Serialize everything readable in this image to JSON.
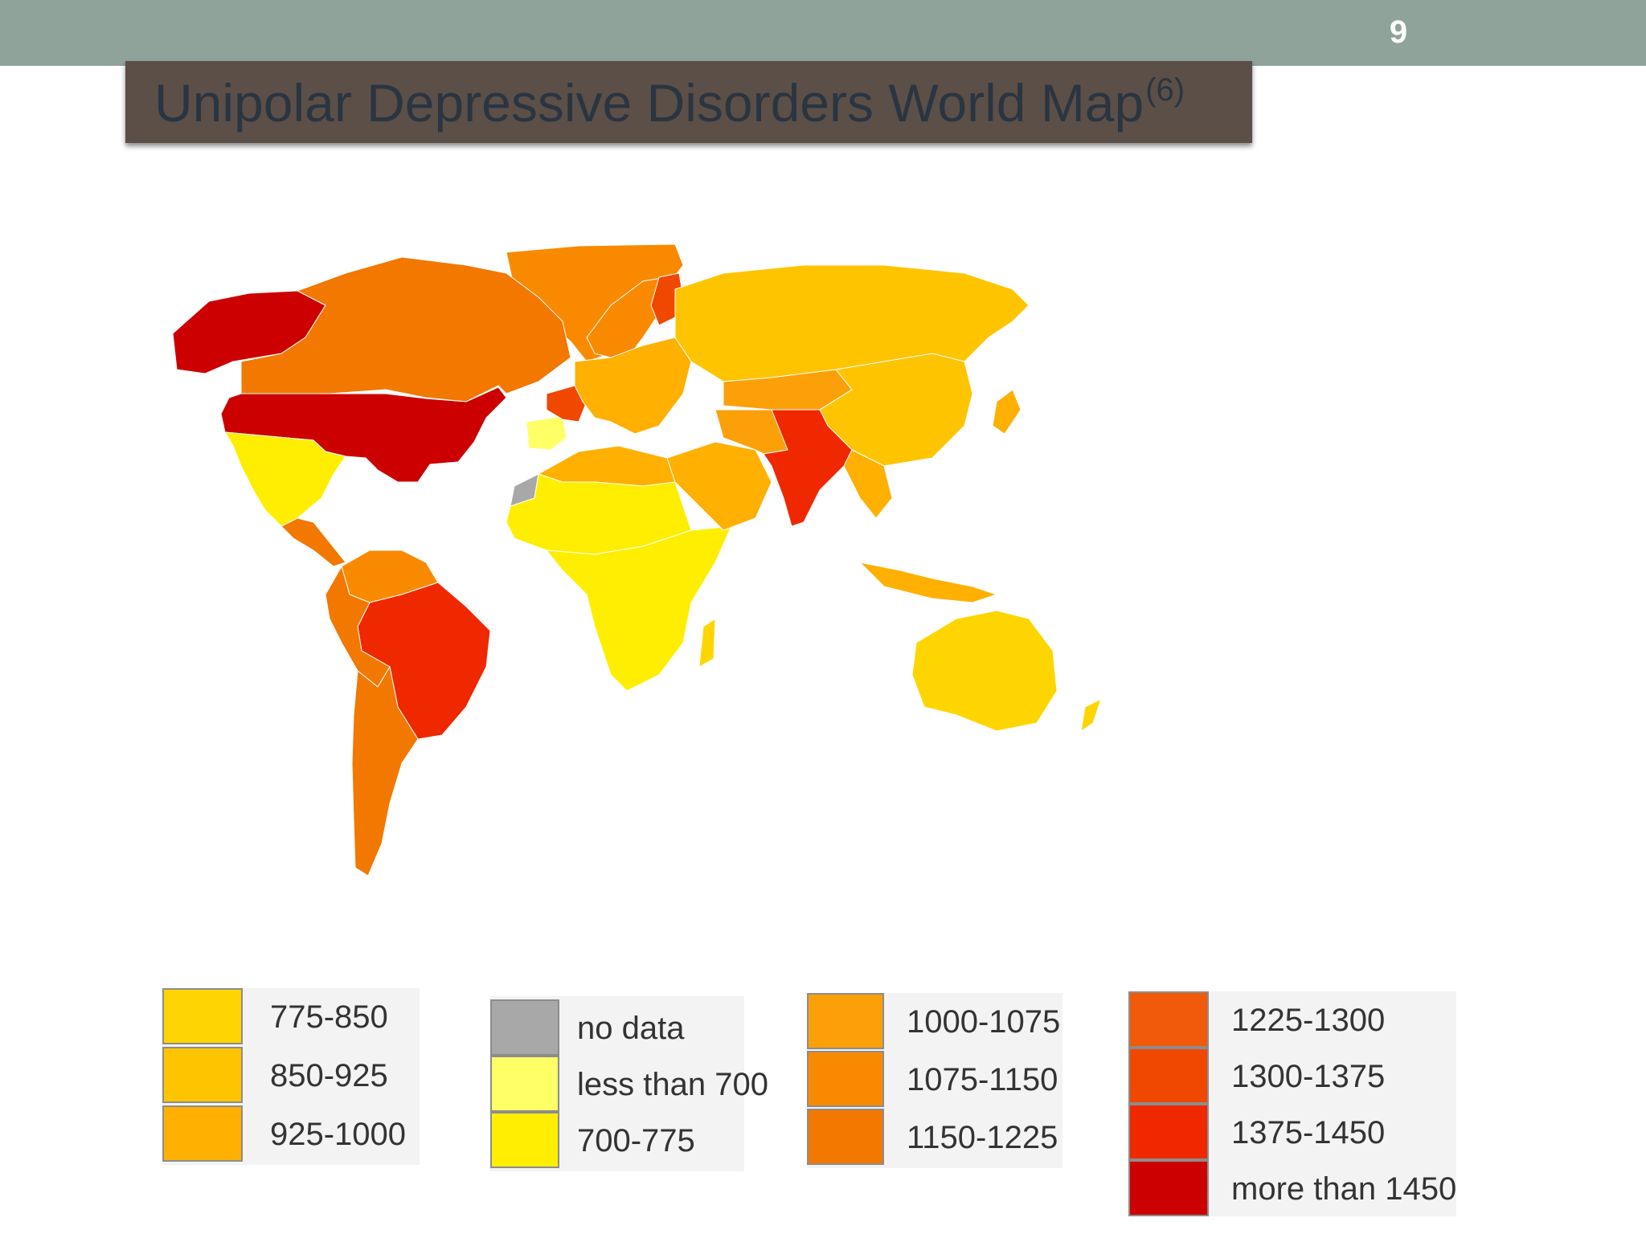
{
  "slide": {
    "number": "9",
    "title": "Unipolar Depressive Disorders World Map",
    "title_superscript": "(6)"
  },
  "map": {
    "subject": "world map",
    "region_categories": {
      "greenland": "1075-1150",
      "canada": "1150-1225",
      "alaska": "more than 1450",
      "usa": "more than 1450",
      "mexico": "700-775",
      "central_america": "1150-1225",
      "colombia_venezuela": "1075-1150",
      "brazil": "1375-1450",
      "andes_west_south_america": "1150-1225",
      "argentina_chile": "1150-1225",
      "scandinavia": "1075-1150",
      "finland": "1300-1375",
      "france": "1300-1375",
      "iberia": "less than 700",
      "europe": "925-1000",
      "russia": "850-925",
      "north_africa": "925-1000",
      "sahara_west_africa": "700-775",
      "western_sahara": "no data",
      "sub_saharan_africa": "700-775",
      "middle_east": "925-1000",
      "iran_afghanistan": "1000-1075",
      "central_asia": "1000-1075",
      "china_mongolia": "850-925",
      "india_pakistan": "1375-1450",
      "southeast_asia": "925-1000",
      "indonesia": "925-1000",
      "japan": "925-1000",
      "australia": "775-850",
      "new_zealand": "775-850",
      "madagascar": "775-850"
    }
  },
  "legend": {
    "colors": {
      "775-850": "#ffd500",
      "850-925": "#ffc400",
      "925-1000": "#ffb000",
      "no data": "#a8a8a8",
      "less than 700": "#ffff66",
      "700-775": "#ffee00",
      "1000-1075": "#fca00a",
      "1075-1150": "#f98a00",
      "1150-1225": "#f27800",
      "1225-1300": "#f05a0a",
      "1300-1375": "#f04800",
      "1375-1450": "#f02800",
      "more than 1450": "#cc0000"
    },
    "groups": [
      {
        "items": [
          {
            "label": "775-850"
          },
          {
            "label": "850-925"
          },
          {
            "label": "925-1000"
          }
        ]
      },
      {
        "items": [
          {
            "label": "no data"
          },
          {
            "label": "less than 700"
          },
          {
            "label": "700-775"
          }
        ]
      },
      {
        "items": [
          {
            "label": "1000-1075"
          },
          {
            "label": "1075-1150"
          },
          {
            "label": "1150-1225"
          }
        ]
      },
      {
        "items": [
          {
            "label": "1225-1300"
          },
          {
            "label": "1300-1375"
          },
          {
            "label": "1375-1450"
          },
          {
            "label": "more than 1450"
          }
        ]
      }
    ]
  }
}
